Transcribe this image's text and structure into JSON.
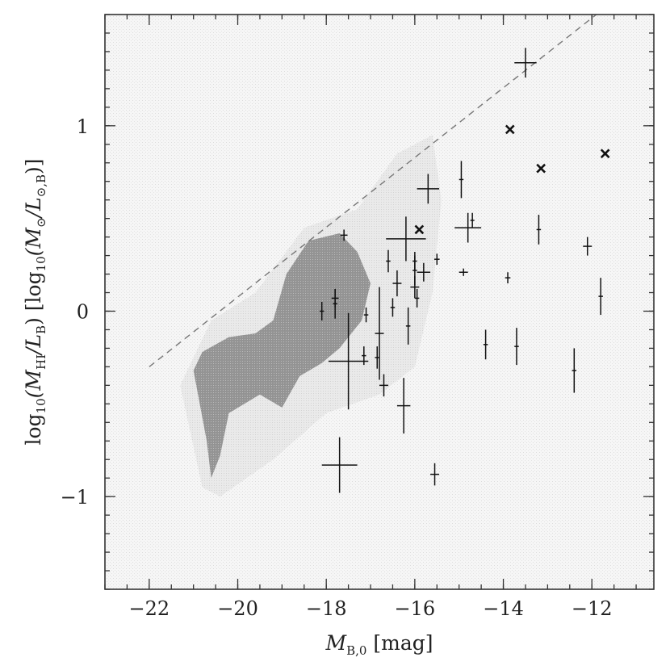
{
  "chart_data": {
    "type": "scatter",
    "title": "",
    "xlabel": {
      "prefix": "M",
      "sub": "B,0",
      "suffix": " [mag]"
    },
    "ylabel": {
      "a": "log",
      "a_sub": "10",
      "b": "(M",
      "b_sub": "HI",
      "c": "/L",
      "c_sub": "B",
      "d": ")  [log",
      "d_sub": "10",
      "e": "(M",
      "e_sub": "⊙",
      "f": "/L",
      "f_sub": "⊙,B",
      "g": ")]"
    },
    "xlim": [
      -23,
      -10.6
    ],
    "ylim": [
      -1.5,
      1.6
    ],
    "x_reversed": false,
    "grid": false,
    "x_major_ticks": [
      -22,
      -20,
      -18,
      -16,
      -14,
      -12
    ],
    "x_tick_labels": [
      "−22",
      "−20",
      "−18",
      "−16",
      "−14",
      "−12"
    ],
    "x_minor_step": 0.5,
    "y_major_ticks": [
      1,
      0,
      -1
    ],
    "y_tick_labels": [
      "1",
      "0",
      "−1"
    ],
    "y_minor_step": 0.1,
    "reference_line": {
      "style": "dashed",
      "color": "#777777",
      "points": [
        [
          -22,
          -0.3
        ],
        [
          -11.9,
          1.6
        ]
      ]
    },
    "shaded_region": {
      "color": "#8a8a8a",
      "description_only": false,
      "polygon": [
        [
          -21,
          -0.32
        ],
        [
          -20.7,
          -0.7
        ],
        [
          -20.6,
          -0.9
        ],
        [
          -20.4,
          -0.78
        ],
        [
          -20.2,
          -0.55
        ],
        [
          -19.5,
          -0.45
        ],
        [
          -19.0,
          -0.52
        ],
        [
          -18.6,
          -0.35
        ],
        [
          -18.1,
          -0.28
        ],
        [
          -17.7,
          -0.2
        ],
        [
          -17.2,
          -0.05
        ],
        [
          -17.0,
          0.15
        ],
        [
          -17.3,
          0.32
        ],
        [
          -17.7,
          0.42
        ],
        [
          -18.4,
          0.38
        ],
        [
          -18.9,
          0.2
        ],
        [
          -19.2,
          -0.05
        ],
        [
          -19.6,
          -0.12
        ],
        [
          -20.2,
          -0.14
        ],
        [
          -20.8,
          -0.22
        ]
      ],
      "halo_polygon": [
        [
          -21.3,
          -0.4
        ],
        [
          -20.8,
          -0.95
        ],
        [
          -20.4,
          -1.0
        ],
        [
          -19.2,
          -0.8
        ],
        [
          -18.0,
          -0.55
        ],
        [
          -16.8,
          -0.45
        ],
        [
          -16.0,
          -0.3
        ],
        [
          -15.6,
          0.1
        ],
        [
          -15.4,
          0.6
        ],
        [
          -15.6,
          0.95
        ],
        [
          -16.4,
          0.85
        ],
        [
          -17.3,
          0.55
        ],
        [
          -18.5,
          0.45
        ],
        [
          -19.6,
          0.1
        ],
        [
          -20.6,
          -0.05
        ]
      ]
    },
    "series": [
      {
        "marker": "errorbar",
        "points": [
          {
            "x": -13.5,
            "y": 1.34,
            "xerr": 0.25,
            "yerr": 0.08
          },
          {
            "x": -15.7,
            "y": 0.66,
            "xerr": 0.25,
            "yerr": 0.08
          },
          {
            "x": -14.95,
            "y": 0.71,
            "xerr": 0.05,
            "yerr": 0.1
          },
          {
            "x": -14.8,
            "y": 0.45,
            "xerr": 0.3,
            "yerr": 0.08
          },
          {
            "x": -16.2,
            "y": 0.39,
            "xerr": 0.45,
            "yerr": 0.12
          },
          {
            "x": -17.6,
            "y": 0.41,
            "xerr": 0.08,
            "yerr": 0.03
          },
          {
            "x": -14.7,
            "y": 0.49,
            "xerr": 0.03,
            "yerr": 0.04
          },
          {
            "x": -16.6,
            "y": 0.27,
            "xerr": 0.05,
            "yerr": 0.06
          },
          {
            "x": -16.0,
            "y": 0.27,
            "xerr": 0.05,
            "yerr": 0.05
          },
          {
            "x": -15.5,
            "y": 0.28,
            "xerr": 0.06,
            "yerr": 0.03
          },
          {
            "x": -15.8,
            "y": 0.21,
            "xerr": 0.15,
            "yerr": 0.05
          },
          {
            "x": -16.0,
            "y": 0.22,
            "xerr": 0.05,
            "yerr": 0.08
          },
          {
            "x": -16.4,
            "y": 0.15,
            "xerr": 0.1,
            "yerr": 0.07
          },
          {
            "x": -16.0,
            "y": 0.13,
            "xerr": 0.1,
            "yerr": 0.06
          },
          {
            "x": -15.95,
            "y": 0.07,
            "xerr": 0.05,
            "yerr": 0.05
          },
          {
            "x": -14.9,
            "y": 0.21,
            "xerr": 0.1,
            "yerr": 0.02
          },
          {
            "x": -13.9,
            "y": 0.18,
            "xerr": 0.06,
            "yerr": 0.03
          },
          {
            "x": -13.2,
            "y": 0.44,
            "xerr": 0.05,
            "yerr": 0.08
          },
          {
            "x": -12.1,
            "y": 0.35,
            "xerr": 0.1,
            "yerr": 0.05
          },
          {
            "x": -11.8,
            "y": 0.08,
            "xerr": 0.05,
            "yerr": 0.1
          },
          {
            "x": -17.8,
            "y": 0.07,
            "xerr": 0.08,
            "yerr": 0.05
          },
          {
            "x": -17.8,
            "y": 0.04,
            "xerr": 0.05,
            "yerr": 0.08
          },
          {
            "x": -18.1,
            "y": 0.0,
            "xerr": 0.05,
            "yerr": 0.05
          },
          {
            "x": -17.1,
            "y": -0.02,
            "xerr": 0.05,
            "yerr": 0.04
          },
          {
            "x": -16.5,
            "y": 0.02,
            "xerr": 0.05,
            "yerr": 0.05
          },
          {
            "x": -16.8,
            "y": -0.12,
            "xerr": 0.1,
            "yerr": 0.25
          },
          {
            "x": -16.15,
            "y": -0.08,
            "xerr": 0.05,
            "yerr": 0.1
          },
          {
            "x": -17.15,
            "y": -0.24,
            "xerr": 0.05,
            "yerr": 0.05
          },
          {
            "x": -16.85,
            "y": -0.25,
            "xerr": 0.05,
            "yerr": 0.06
          },
          {
            "x": -17.5,
            "y": -0.27,
            "xerr": 0.45,
            "yerr": 0.26
          },
          {
            "x": -16.7,
            "y": -0.4,
            "xerr": 0.1,
            "yerr": 0.06
          },
          {
            "x": -16.25,
            "y": -0.51,
            "xerr": 0.15,
            "yerr": 0.15
          },
          {
            "x": -14.4,
            "y": -0.18,
            "xerr": 0.05,
            "yerr": 0.08
          },
          {
            "x": -13.7,
            "y": -0.19,
            "xerr": 0.05,
            "yerr": 0.1
          },
          {
            "x": -12.4,
            "y": -0.32,
            "xerr": 0.05,
            "yerr": 0.12
          },
          {
            "x": -17.7,
            "y": -0.83,
            "xerr": 0.4,
            "yerr": 0.15
          },
          {
            "x": -15.55,
            "y": -0.88,
            "xerr": 0.1,
            "yerr": 0.06
          }
        ]
      },
      {
        "marker": "x",
        "points": [
          {
            "x": -13.85,
            "y": 0.98
          },
          {
            "x": -13.15,
            "y": 0.77
          },
          {
            "x": -11.7,
            "y": 0.85
          },
          {
            "x": -15.9,
            "y": 0.44
          }
        ]
      }
    ]
  }
}
